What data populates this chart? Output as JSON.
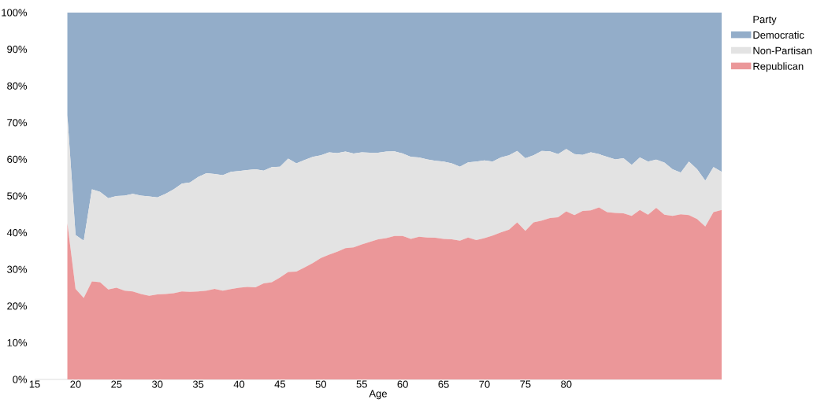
{
  "chart_data": {
    "type": "area",
    "stacked": true,
    "xlabel": "Age",
    "legend_title": "Party",
    "legend": "right",
    "x": [
      19,
      20,
      21,
      22,
      23,
      24,
      25,
      26,
      27,
      28,
      29,
      30,
      31,
      32,
      33,
      34,
      35,
      36,
      37,
      38,
      39,
      40,
      41,
      42,
      43,
      44,
      45,
      46,
      47,
      48,
      49,
      50,
      51,
      52,
      53,
      54,
      55,
      56,
      57,
      58,
      59,
      60,
      61,
      62,
      63,
      64,
      65,
      66,
      67,
      68,
      69,
      70,
      71,
      72,
      73,
      74,
      75,
      76,
      77,
      78,
      79,
      80,
      81,
      82,
      83,
      84,
      85,
      86,
      87,
      88,
      89,
      90,
      91,
      92,
      93,
      94,
      95,
      96,
      97,
      98,
      99
    ],
    "series": [
      {
        "name": "Republican",
        "color": "#eb9799",
        "values": [
          42.6,
          24.7,
          22.2,
          26.7,
          26.5,
          24.5,
          25.0,
          24.2,
          24.0,
          23.3,
          22.8,
          23.2,
          23.3,
          23.5,
          24.0,
          23.9,
          24.0,
          24.2,
          24.7,
          24.2,
          24.6,
          25.0,
          25.2,
          25.1,
          26.2,
          26.5,
          27.8,
          29.3,
          29.4,
          30.5,
          31.7,
          33.1,
          34.0,
          34.8,
          35.8,
          36.0,
          36.8,
          37.5,
          38.2,
          38.5,
          39.1,
          39.1,
          38.3,
          38.9,
          38.7,
          38.6,
          38.3,
          38.2,
          37.8,
          38.7,
          38.0,
          38.5,
          39.2,
          40.1,
          40.8,
          42.8,
          40.5,
          42.8,
          43.3,
          44.0,
          44.2,
          45.8,
          44.8,
          45.9,
          46.1,
          46.9,
          45.6,
          45.4,
          45.3,
          44.6,
          46.2,
          44.9,
          46.8,
          44.9,
          44.6,
          45.0,
          44.8,
          43.7,
          41.7,
          45.6,
          46.2
        ]
      },
      {
        "name": "Non-Partisan",
        "color": "#e3e3e3",
        "values": [
          29.4,
          14.7,
          15.6,
          25.1,
          24.6,
          24.9,
          25.0,
          25.9,
          26.6,
          26.8,
          27.1,
          26.4,
          27.3,
          28.3,
          29.4,
          29.8,
          31.2,
          32.0,
          31.3,
          31.5,
          32.0,
          31.8,
          31.9,
          32.2,
          30.7,
          31.4,
          30.2,
          30.9,
          29.5,
          29.3,
          29.0,
          28.0,
          27.9,
          26.9,
          26.3,
          25.6,
          25.1,
          24.3,
          23.6,
          23.6,
          23.1,
          22.5,
          22.4,
          21.6,
          21.3,
          21.0,
          21.1,
          20.7,
          20.2,
          20.5,
          21.4,
          21.2,
          20.2,
          20.4,
          20.3,
          19.5,
          19.8,
          18.3,
          19.0,
          18.2,
          17.2,
          17.0,
          16.6,
          15.3,
          15.8,
          14.5,
          15.1,
          14.6,
          15.0,
          13.9,
          14.3,
          14.5,
          13.1,
          14.2,
          12.7,
          11.4,
          14.6,
          13.6,
          12.5,
          12.3,
          10.4
        ]
      },
      {
        "name": "Democratic",
        "color": "#93adc9",
        "values": [
          28.0,
          60.6,
          62.2,
          48.2,
          48.9,
          50.6,
          50.0,
          49.9,
          49.4,
          49.9,
          50.1,
          50.4,
          49.4,
          48.2,
          46.6,
          46.3,
          44.8,
          43.8,
          44.0,
          44.3,
          43.4,
          43.2,
          42.9,
          42.7,
          43.1,
          42.1,
          42.0,
          39.8,
          41.1,
          40.2,
          39.3,
          38.9,
          38.1,
          38.3,
          37.9,
          38.4,
          38.1,
          38.2,
          38.2,
          37.9,
          37.8,
          38.4,
          39.3,
          39.5,
          40.0,
          40.4,
          40.6,
          41.1,
          42.0,
          40.8,
          40.6,
          40.3,
          40.6,
          39.5,
          38.9,
          37.7,
          39.7,
          38.9,
          37.7,
          37.8,
          38.6,
          37.2,
          38.6,
          38.8,
          38.1,
          38.6,
          39.3,
          40.0,
          39.7,
          41.5,
          39.5,
          40.6,
          40.1,
          40.9,
          42.7,
          43.6,
          40.6,
          42.7,
          45.8,
          42.1,
          43.4
        ]
      }
    ],
    "xlim": [
      15,
      99
    ],
    "ylim": [
      0,
      100
    ],
    "xticks": [
      15,
      20,
      25,
      30,
      35,
      40,
      45,
      50,
      55,
      60,
      65,
      70,
      75,
      80
    ],
    "yticks": [
      {
        "value": 0,
        "label": "0%"
      },
      {
        "value": 10,
        "label": "10%"
      },
      {
        "value": 20,
        "label": "20%"
      },
      {
        "value": 30,
        "label": "30%"
      },
      {
        "value": 40,
        "label": "40%"
      },
      {
        "value": 50,
        "label": "50%"
      },
      {
        "value": 60,
        "label": "60%"
      },
      {
        "value": 70,
        "label": "70%"
      },
      {
        "value": 80,
        "label": "80%"
      },
      {
        "value": 90,
        "label": "90%"
      },
      {
        "value": 100,
        "label": "100%"
      }
    ]
  }
}
